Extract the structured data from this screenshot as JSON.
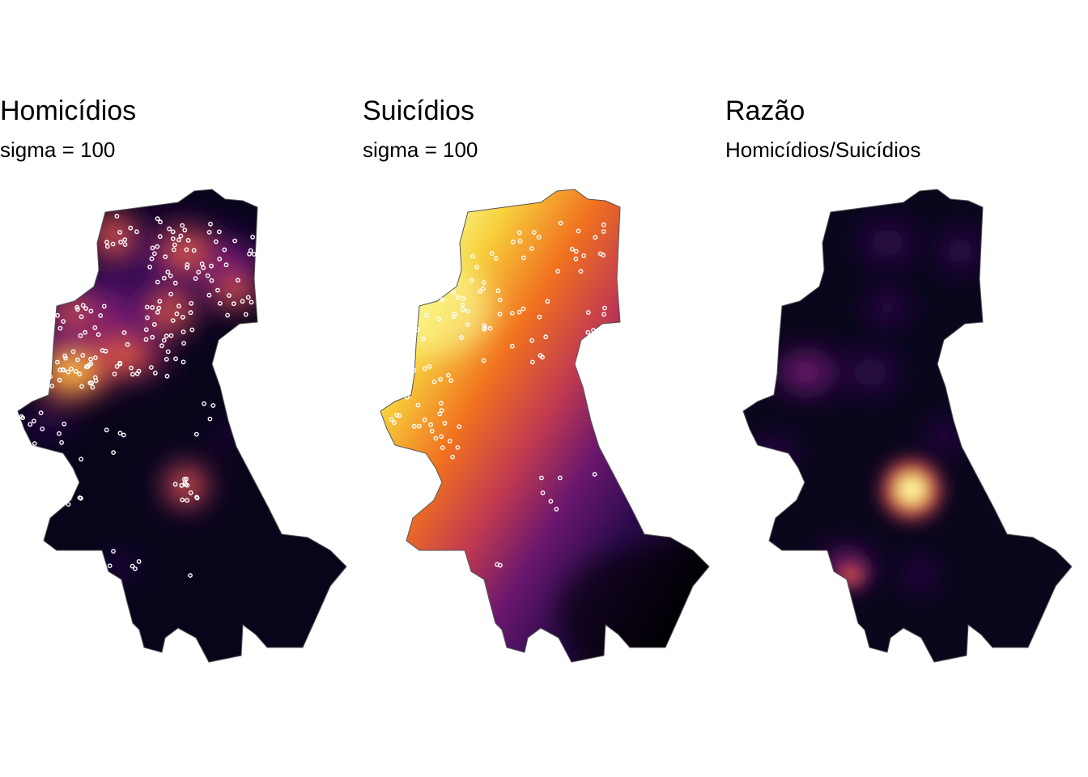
{
  "colors": {
    "palette": "inferno",
    "background": "#ffffff",
    "outline": "#555555",
    "points_stroke": "#ffffff"
  },
  "panels": [
    {
      "title": "Homicídios",
      "subtitle": "sigma = 100",
      "layer": "homicide-density",
      "points": "homicide-cases"
    },
    {
      "title": "Suicídios",
      "subtitle": "sigma = 100",
      "layer": "suicide-density",
      "points": "suicide-cases"
    },
    {
      "title": "Razão",
      "subtitle": "Homicídios/Suicídios",
      "layer": "ratio-density",
      "points": ""
    }
  ]
}
